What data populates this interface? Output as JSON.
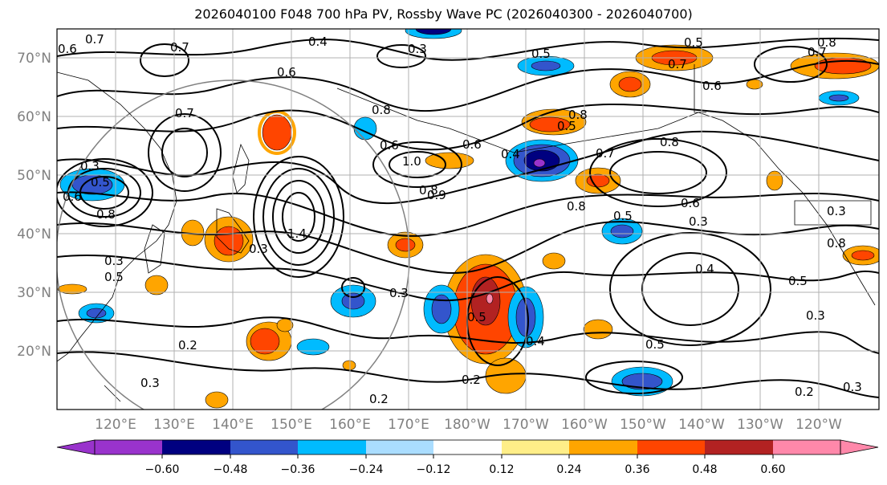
{
  "title": "2026040100 F048 700 hPa PV, Rossby Wave PC (2026040300 - 2026040700)",
  "latitude_labels": [
    "70°N",
    "60°N",
    "50°N",
    "40°N",
    "30°N",
    "20°N"
  ],
  "longitude_labels": [
    "120°E",
    "130°E",
    "140°E",
    "150°E",
    "160°E",
    "170°E",
    "180°W",
    "170°W",
    "160°W",
    "150°W",
    "140°W",
    "130°W",
    "120°W"
  ],
  "colorbar": {
    "colors": [
      "#9933cc",
      "#000080",
      "#3355cc",
      "#00bbff",
      "#aaddff",
      "#ffffff",
      "#ffee88",
      "#ffa500",
      "#ff4500",
      "#b22222",
      "#ff88aa"
    ],
    "tick_labels": [
      "−0.60",
      "−0.48",
      "−0.36",
      "−0.24",
      "−0.12",
      "0.12",
      "0.24",
      "0.36",
      "0.48",
      "0.60"
    ]
  },
  "contour_labels": [
    {
      "text": "0.7"
    },
    {
      "text": "0.6"
    },
    {
      "text": "0.7"
    },
    {
      "text": "0.4"
    },
    {
      "text": "0.3"
    },
    {
      "text": "0.5"
    },
    {
      "text": "0.5"
    },
    {
      "text": "0.7"
    },
    {
      "text": "0.8"
    },
    {
      "text": "0.7"
    },
    {
      "text": "0.6"
    },
    {
      "text": "0.6"
    },
    {
      "text": "0.7"
    },
    {
      "text": "0.8"
    },
    {
      "text": "0.6"
    },
    {
      "text": "0.8"
    },
    {
      "text": "0.5"
    },
    {
      "text": "0.6"
    },
    {
      "text": "0.4"
    },
    {
      "text": "0.7"
    },
    {
      "text": "0.8"
    },
    {
      "text": "1.0"
    },
    {
      "text": "0.8"
    },
    {
      "text": "0.9"
    },
    {
      "text": "0.8"
    },
    {
      "text": "0.5"
    },
    {
      "text": "0.6"
    },
    {
      "text": "0.3"
    },
    {
      "text": "0.3"
    },
    {
      "text": "1.4"
    },
    {
      "text": "0.3"
    },
    {
      "text": "0.5"
    },
    {
      "text": "0.4"
    },
    {
      "text": "0.5"
    },
    {
      "text": "0.3"
    },
    {
      "text": "0.2"
    },
    {
      "text": "0.3"
    },
    {
      "text": "0.2"
    },
    {
      "text": "0.2"
    },
    {
      "text": "0.4"
    },
    {
      "text": "0.5"
    },
    {
      "text": "0.2"
    },
    {
      "text": "0.3"
    },
    {
      "text": "0.5"
    },
    {
      "text": "0.3"
    },
    {
      "text": "0.5"
    },
    {
      "text": "0.3"
    },
    {
      "text": "0.6"
    },
    {
      "text": "0.8"
    },
    {
      "text": "0.3"
    },
    {
      "text": "0.8"
    }
  ]
}
